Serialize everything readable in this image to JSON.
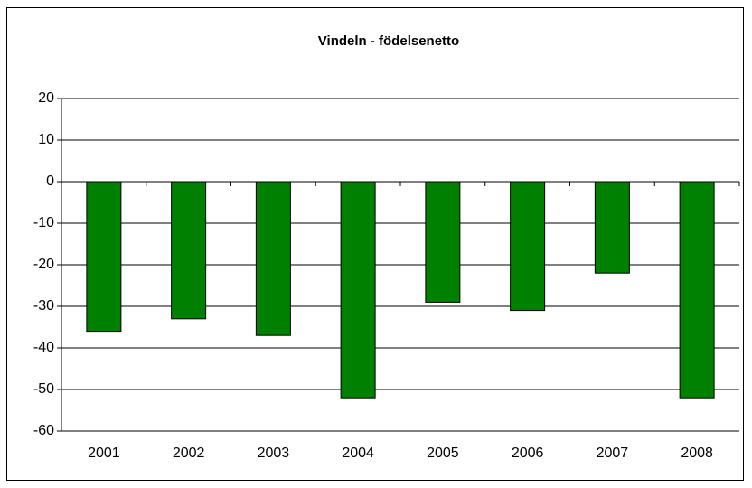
{
  "chart_data": {
    "type": "bar",
    "title": "Vindeln - födelsenetto",
    "categories": [
      "2001",
      "2002",
      "2003",
      "2004",
      "2005",
      "2006",
      "2007",
      "2008"
    ],
    "values": [
      -36,
      -33,
      -37,
      -52,
      -29,
      -31,
      -22,
      -52
    ],
    "color": "#008000",
    "ylim": [
      -60,
      20
    ],
    "yticks": [
      -60,
      -50,
      -40,
      -30,
      -20,
      -10,
      0,
      10,
      20
    ],
    "grid": true
  }
}
